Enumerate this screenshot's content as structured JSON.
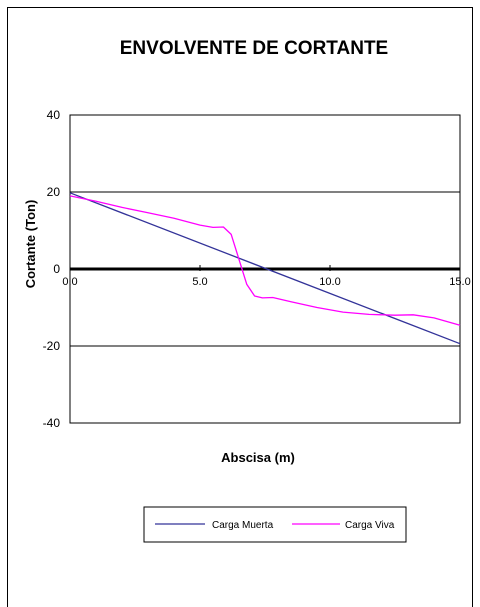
{
  "chart_data": {
    "type": "line",
    "title": "ENVOLVENTE DE CORTANTE",
    "xlabel": "Abscisa (m)",
    "ylabel": "Cortante (Ton)",
    "xlim": [
      0,
      15
    ],
    "ylim": [
      -40,
      40
    ],
    "xticks": [
      "0.0",
      "5.0",
      "10.0",
      "15.0"
    ],
    "yticks": [
      "40",
      "20",
      "0",
      "-20",
      "-40"
    ],
    "ytick_values": [
      40,
      20,
      0,
      -20,
      -40
    ],
    "xtick_values": [
      0,
      5,
      10,
      15
    ],
    "grid": "horizontal",
    "legend": "bottom",
    "series": [
      {
        "name": "Carga Muerta",
        "color": "#333399",
        "x": [
          0,
          15
        ],
        "values": [
          19.8,
          -19.4
        ]
      },
      {
        "name": "Carga Viva",
        "color": "#ff00ff",
        "x": [
          0,
          1,
          2,
          3,
          4,
          5,
          5.5,
          5.9,
          6.2,
          6.5,
          6.8,
          7.1,
          7.4,
          7.8,
          8.5,
          9.5,
          10.5,
          11.5,
          12.5,
          13.2,
          14.0,
          15.0
        ],
        "values": [
          19.0,
          17.6,
          16.0,
          14.6,
          13.2,
          11.4,
          10.8,
          10.9,
          9.0,
          2.5,
          -4.0,
          -7.0,
          -7.5,
          -7.4,
          -8.5,
          -10.0,
          -11.2,
          -11.8,
          -12.0,
          -11.9,
          -12.7,
          -14.6
        ]
      }
    ]
  }
}
